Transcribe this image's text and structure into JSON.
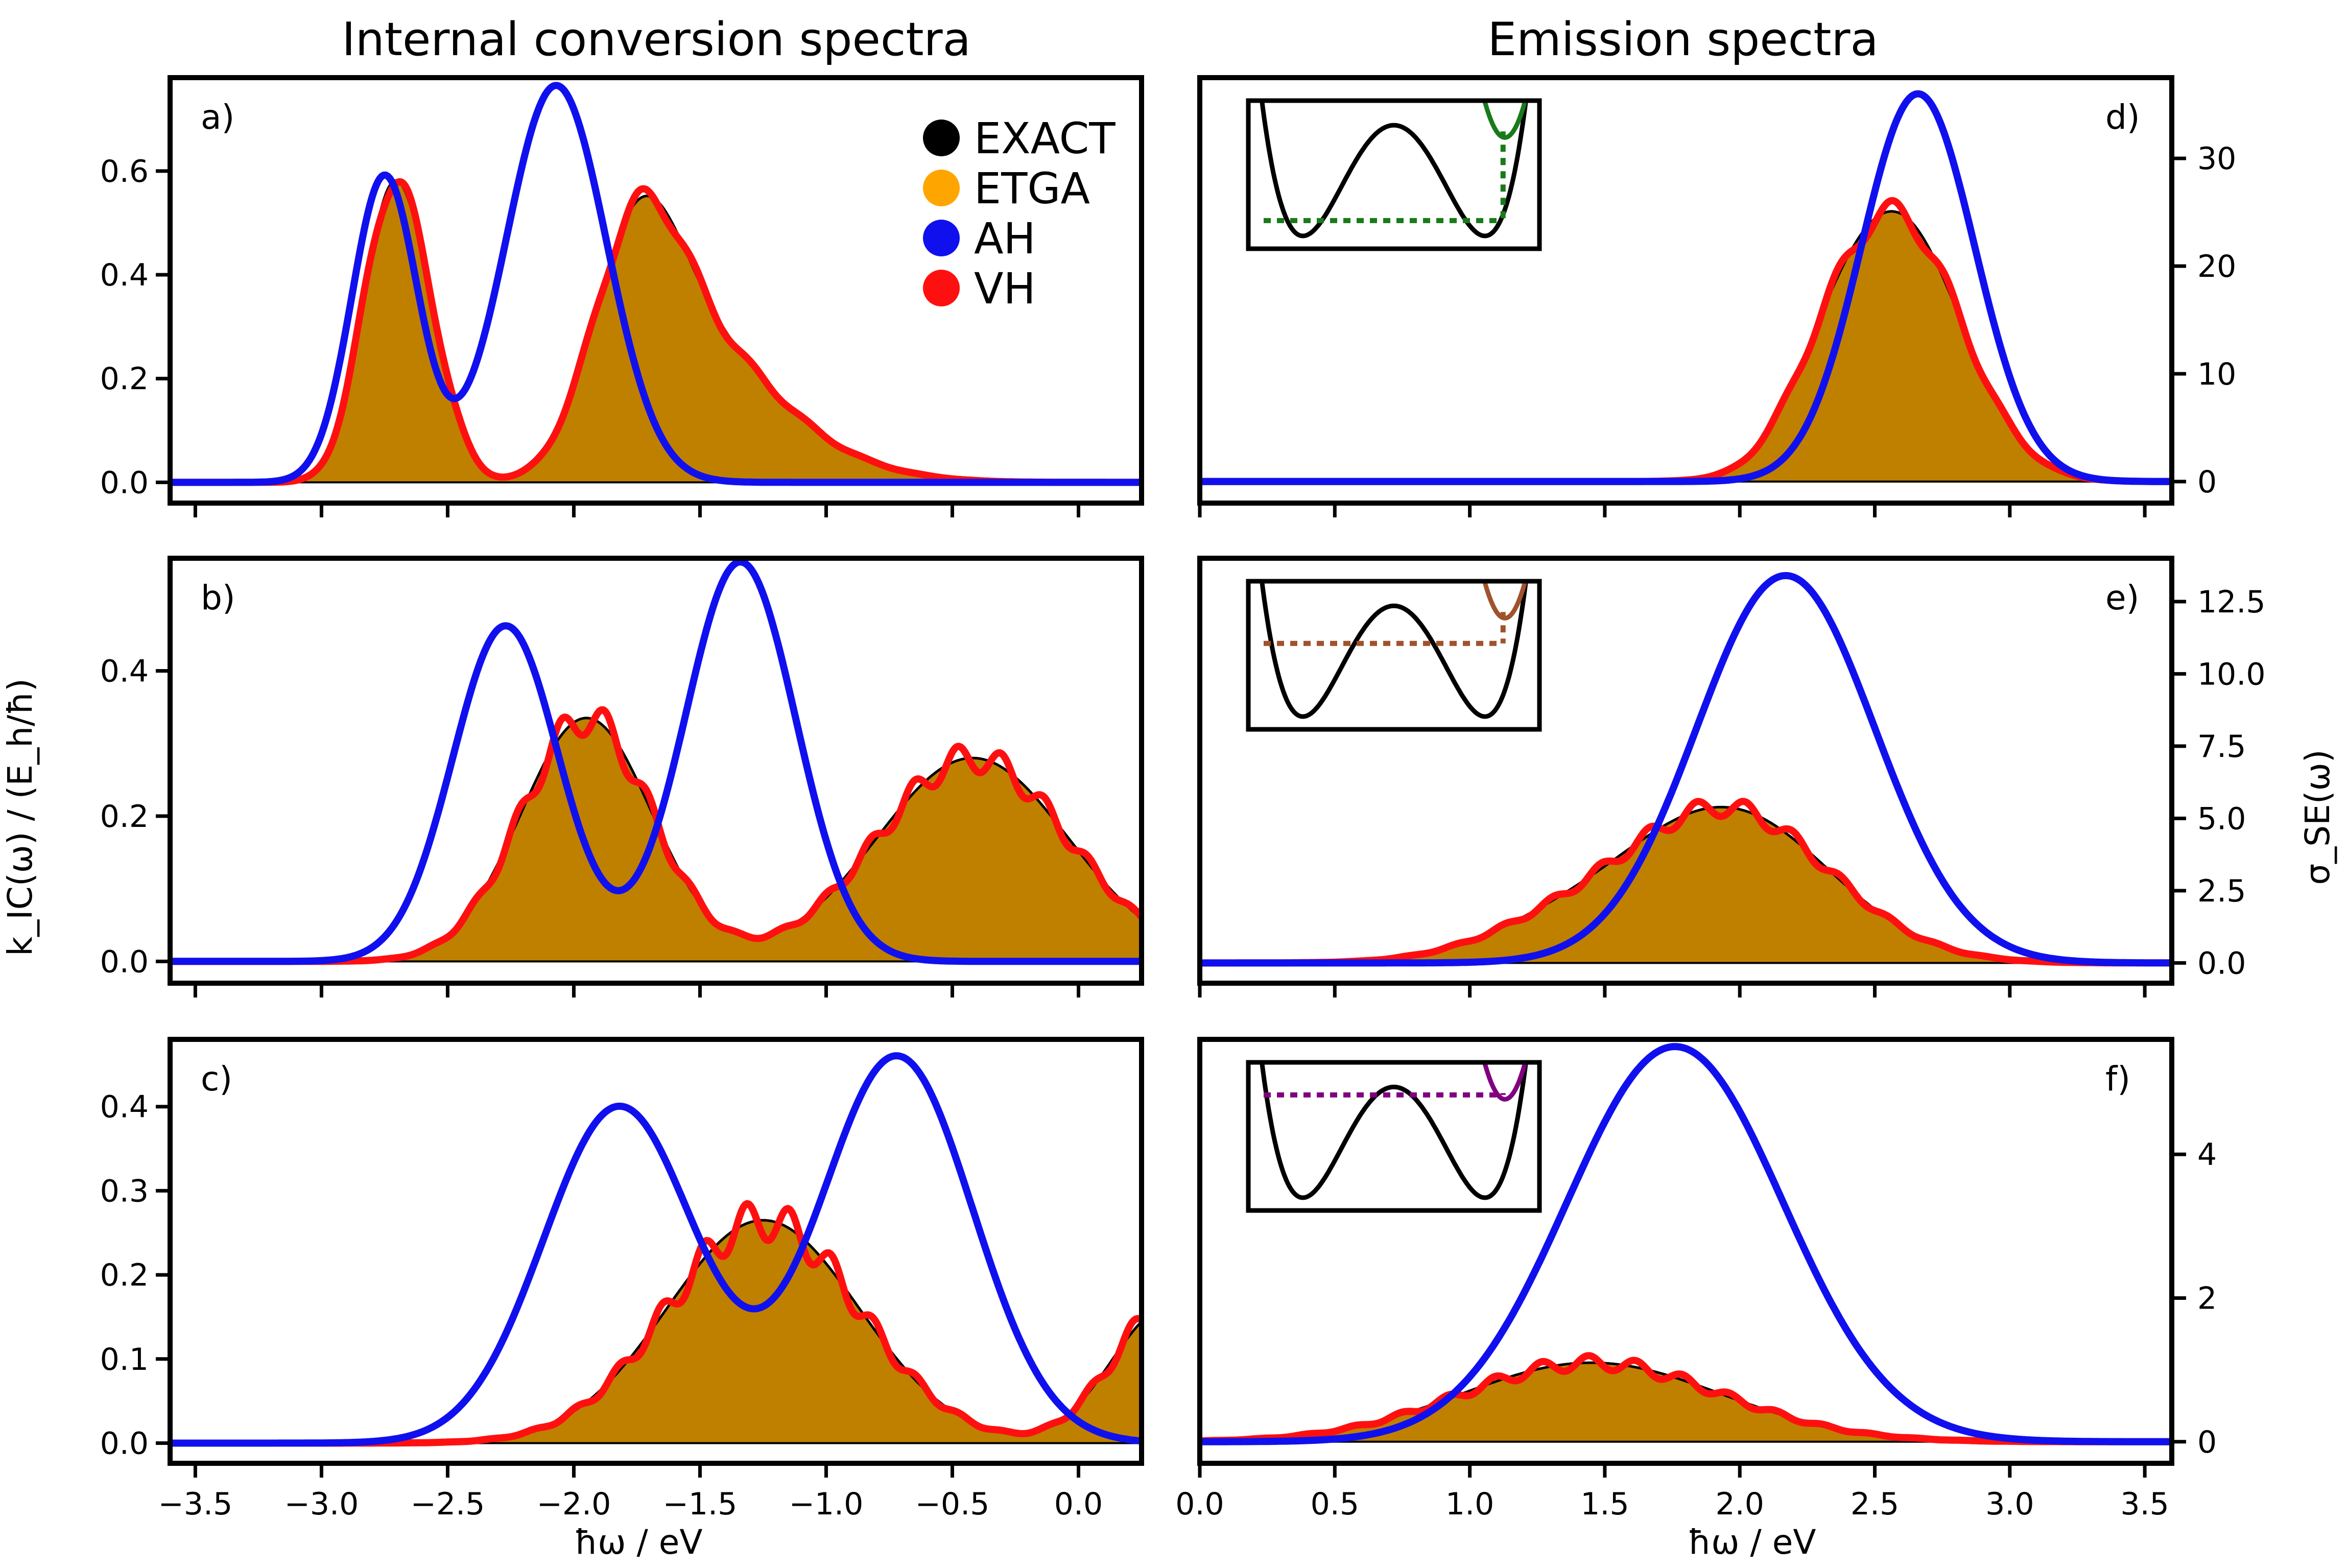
{
  "titles": {
    "left": "Internal conversion spectra",
    "right": "Emission spectra"
  },
  "axis_labels": {
    "left_x": "ħω / eV",
    "right_x": "ħω / eV",
    "left_y": "k_IC(ω) / (E_h/ħ)",
    "right_y": "σ_SE(ω)"
  },
  "colors": {
    "exact": "#000000",
    "etga": "#ffa500",
    "ah": "#1010ee",
    "vh": "#ff1010",
    "fill": "#bf8000",
    "inset_a": "#1a7a1a",
    "inset_b": "#a0522d",
    "inset_c": "#800080"
  },
  "legend": {
    "entries": [
      {
        "label": "EXACT",
        "color": "#000000"
      },
      {
        "label": "ETGA",
        "color": "#ffa500"
      },
      {
        "label": "AH",
        "color": "#1010ee"
      },
      {
        "label": "VH",
        "color": "#ff1010"
      }
    ]
  },
  "chart_data": [
    {
      "id": "a",
      "tag": "a)",
      "type": "line",
      "side": "left",
      "xlim": [
        -3.6,
        0.25
      ],
      "ylim": [
        -0.04,
        0.78
      ],
      "yticks": [
        0.0,
        0.2,
        0.4,
        0.6
      ],
      "ytick_labels": [
        "0.0",
        "0.2",
        "0.4",
        "0.6"
      ],
      "series": [
        {
          "name": "EXACT",
          "peaks": [
            [
              -2.72,
              0.55,
              0.12
            ],
            [
              -2.55,
              0.12,
              0.1
            ],
            [
              -1.75,
              0.44,
              0.18
            ],
            [
              -1.45,
              0.2,
              0.25
            ],
            [
              -1.1,
              0.05,
              0.3
            ]
          ]
        },
        {
          "name": "AH",
          "peaks": [
            [
              -2.75,
              0.59,
              0.13
            ],
            [
              -2.07,
              0.765,
              0.2
            ]
          ]
        },
        {
          "name": "VH",
          "peaks": [
            [
              -2.72,
              0.55,
              0.12
            ],
            [
              -2.55,
              0.12,
              0.1
            ],
            [
              -1.75,
              0.44,
              0.18
            ],
            [
              -1.45,
              0.2,
              0.25
            ],
            [
              -1.1,
              0.05,
              0.3
            ]
          ],
          "ripple": [
            0.03,
            28
          ]
        }
      ]
    },
    {
      "id": "b",
      "tag": "b)",
      "type": "line",
      "side": "left",
      "xlim": [
        -3.6,
        0.25
      ],
      "ylim": [
        -0.03,
        0.555
      ],
      "yticks": [
        0.0,
        0.2,
        0.4
      ],
      "ytick_labels": [
        "0.0",
        "0.2",
        "0.4"
      ],
      "series": [
        {
          "name": "EXACT",
          "peaks": [
            [
              -1.95,
              0.335,
              0.26
            ],
            [
              -0.42,
              0.28,
              0.38
            ]
          ]
        },
        {
          "name": "AH",
          "peaks": [
            [
              -2.27,
              0.462,
              0.21
            ],
            [
              -1.34,
              0.55,
              0.22
            ]
          ]
        },
        {
          "name": "VH",
          "peaks": [
            [
              -1.95,
              0.335,
              0.26
            ],
            [
              -0.42,
              0.28,
              0.38
            ]
          ],
          "ripple": [
            0.07,
            36
          ]
        }
      ]
    },
    {
      "id": "c",
      "tag": "c)",
      "type": "line",
      "side": "left",
      "xlim": [
        -3.6,
        0.25
      ],
      "ylim": [
        -0.024,
        0.48
      ],
      "yticks": [
        0.0,
        0.1,
        0.2,
        0.3,
        0.4
      ],
      "ytick_labels": [
        "0.0",
        "0.1",
        "0.2",
        "0.3",
        "0.4"
      ],
      "series": [
        {
          "name": "EXACT",
          "peaks": [
            [
              -1.25,
              0.265,
              0.38
            ],
            [
              0.35,
              0.16,
              0.22
            ]
          ]
        },
        {
          "name": "AH",
          "peaks": [
            [
              -1.82,
              0.4,
              0.3
            ],
            [
              -0.72,
              0.46,
              0.3
            ]
          ]
        },
        {
          "name": "VH",
          "peaks": [
            [
              -1.25,
              0.265,
              0.38
            ],
            [
              0.35,
              0.16,
              0.22
            ]
          ],
          "ripple": [
            0.09,
            37
          ]
        }
      ]
    },
    {
      "id": "d",
      "tag": "d)",
      "type": "line",
      "side": "right",
      "xlim": [
        0.0,
        3.6
      ],
      "ylim": [
        -2,
        37.5
      ],
      "yticks": [
        0,
        10,
        20,
        30
      ],
      "ytick_labels": [
        "0",
        "10",
        "20",
        "30"
      ],
      "series": [
        {
          "name": "EXACT",
          "peaks": [
            [
              2.58,
              24.5,
              0.24
            ],
            [
              2.3,
              3,
              0.15
            ]
          ]
        },
        {
          "name": "AH",
          "peaks": [
            [
              2.66,
              36,
              0.21
            ]
          ]
        },
        {
          "name": "VH",
          "peaks": [
            [
              2.58,
              24.5,
              0.24
            ],
            [
              2.3,
              3,
              0.15
            ]
          ],
          "ripple": [
            0.04,
            30
          ]
        }
      ],
      "inset_color_key": "inset_a",
      "inset_level": 0.55
    },
    {
      "id": "e",
      "tag": "e)",
      "type": "line",
      "side": "right",
      "xlim": [
        0.0,
        3.6
      ],
      "ylim": [
        -0.7,
        14.0
      ],
      "yticks": [
        0.0,
        2.5,
        5.0,
        7.5,
        10.0,
        12.5
      ],
      "ytick_labels": [
        "0.0",
        "2.5",
        "5.0",
        "7.5",
        "10.0",
        "12.5"
      ],
      "series": [
        {
          "name": "EXACT",
          "peaks": [
            [
              1.95,
              5.3,
              0.38
            ],
            [
              1.3,
              0.9,
              0.3
            ]
          ]
        },
        {
          "name": "AH",
          "peaks": [
            [
              2.17,
              13.4,
              0.33
            ]
          ]
        },
        {
          "name": "VH",
          "peaks": [
            [
              1.95,
              5.3,
              0.38
            ],
            [
              1.3,
              0.9,
              0.3
            ]
          ],
          "ripple": [
            0.06,
            35
          ]
        }
      ],
      "inset_color_key": "inset_b",
      "inset_level": 0.42
    },
    {
      "id": "f",
      "tag": "f)",
      "type": "line",
      "side": "right",
      "xlim": [
        0.0,
        3.6
      ],
      "ylim": [
        -0.3,
        5.6
      ],
      "yticks": [
        0,
        2,
        4
      ],
      "ytick_labels": [
        "0",
        "2",
        "4"
      ],
      "series": [
        {
          "name": "EXACT",
          "peaks": [
            [
              1.45,
              1.1,
              0.48
            ]
          ]
        },
        {
          "name": "AH",
          "peaks": [
            [
              1.76,
              5.5,
              0.4
            ]
          ]
        },
        {
          "name": "VH",
          "peaks": [
            [
              1.45,
              1.1,
              0.48
            ]
          ],
          "ripple": [
            0.09,
            36
          ]
        }
      ],
      "inset_color_key": "inset_c",
      "inset_level": 0.22
    }
  ],
  "x_axes": {
    "left": {
      "ticks": [
        -3.5,
        -3.0,
        -2.5,
        -2.0,
        -1.5,
        -1.0,
        -0.5,
        0.0
      ],
      "labels": [
        "−3.5",
        "−3.0",
        "−2.5",
        "−2.0",
        "−1.5",
        "−1.0",
        "−0.5",
        "0.0"
      ]
    },
    "right": {
      "ticks": [
        0.0,
        0.5,
        1.0,
        1.5,
        2.0,
        2.5,
        3.0,
        3.5
      ],
      "labels": [
        "0.0",
        "0.5",
        "1.0",
        "1.5",
        "2.0",
        "2.5",
        "3.0",
        "3.5"
      ]
    }
  }
}
